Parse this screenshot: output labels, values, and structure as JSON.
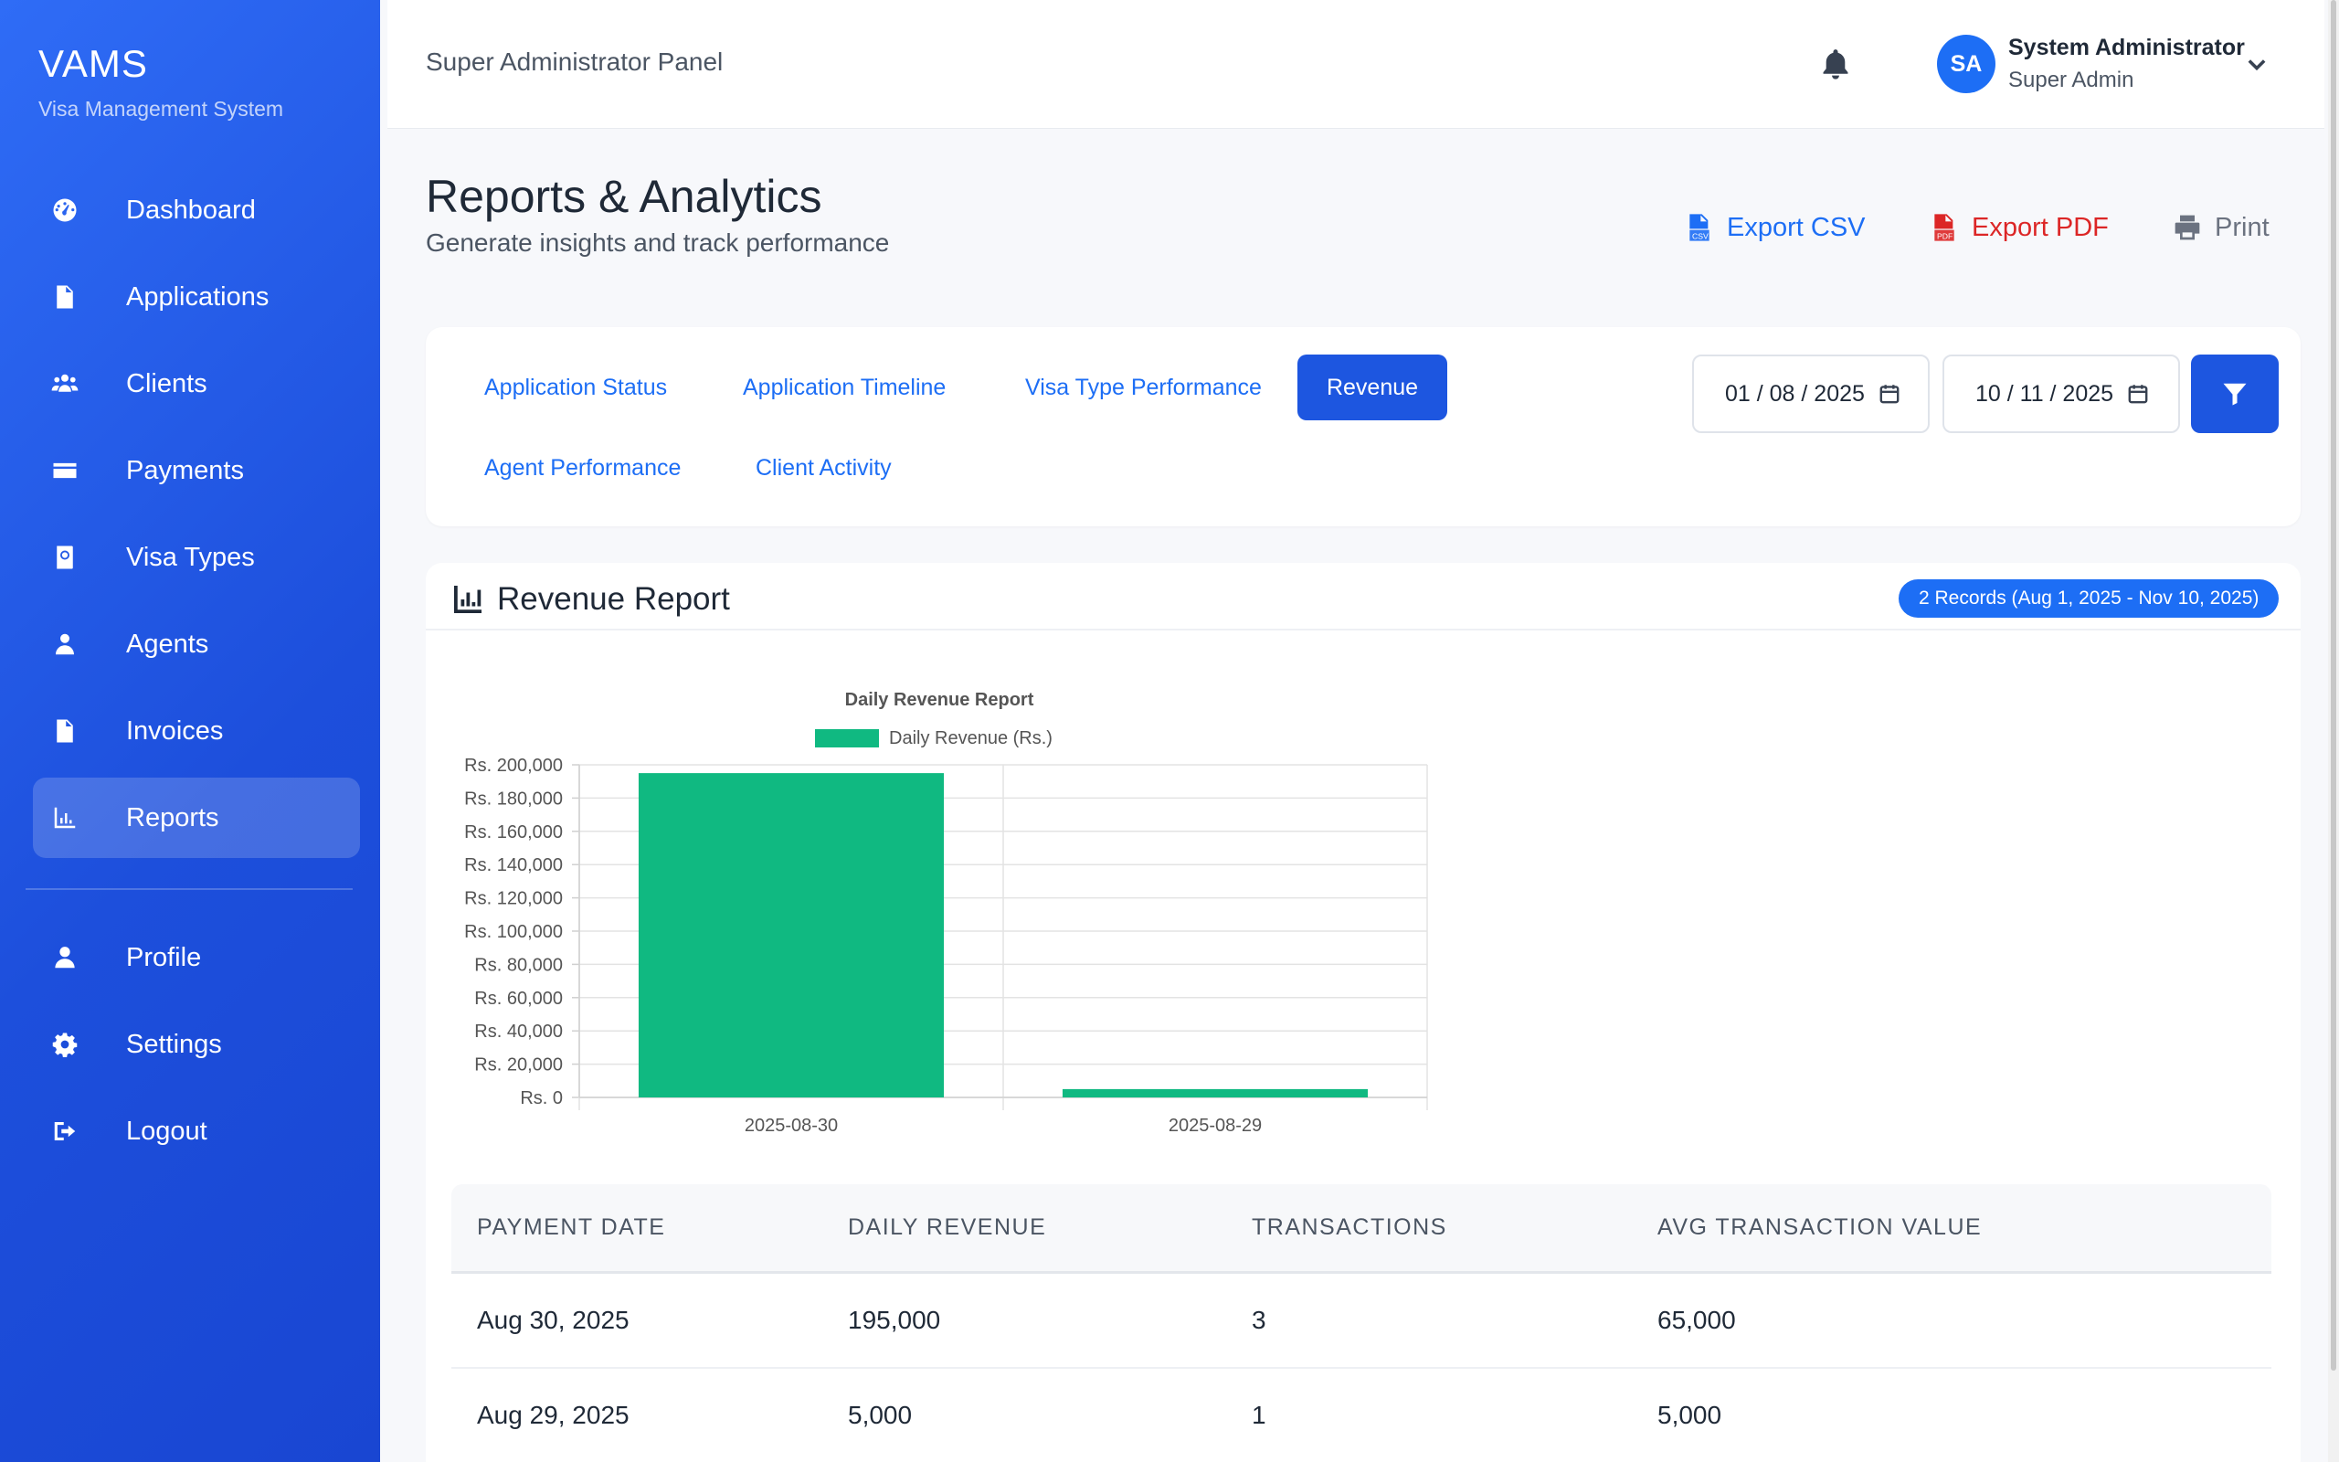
{
  "brand": {
    "title": "VAMS",
    "subtitle": "Visa Management System"
  },
  "sidebar": {
    "items": [
      {
        "label": "Dashboard",
        "icon": "dashboard-icon"
      },
      {
        "label": "Applications",
        "icon": "file-icon"
      },
      {
        "label": "Clients",
        "icon": "users-icon"
      },
      {
        "label": "Payments",
        "icon": "credit-card-icon"
      },
      {
        "label": "Visa Types",
        "icon": "passport-icon"
      },
      {
        "label": "Agents",
        "icon": "agent-icon"
      },
      {
        "label": "Invoices",
        "icon": "invoice-icon"
      },
      {
        "label": "Reports",
        "icon": "chart-icon",
        "active": true
      }
    ],
    "secondary": [
      {
        "label": "Profile",
        "icon": "user-icon"
      },
      {
        "label": "Settings",
        "icon": "gear-icon"
      },
      {
        "label": "Logout",
        "icon": "logout-icon"
      }
    ]
  },
  "topbar": {
    "panel_title": "Super Administrator Panel",
    "avatar_initials": "SA",
    "user_name": "System Administrator",
    "user_role": "Super Admin"
  },
  "header": {
    "title": "Reports & Analytics",
    "subtitle": "Generate insights and track performance",
    "export_csv": "Export CSV",
    "export_pdf": "Export PDF",
    "print": "Print"
  },
  "filters": {
    "tabs": [
      "Application Status",
      "Application Timeline",
      "Visa Type Performance",
      "Revenue",
      "Agent Performance",
      "Client Activity"
    ],
    "active_tab": "Revenue",
    "date_from": "01 / 08 / 2025",
    "date_to": "10 / 11 / 2025"
  },
  "report": {
    "title": "Revenue Report",
    "records_badge": "2 Records (Aug 1, 2025 - Nov 10, 2025)"
  },
  "chart_data": {
    "type": "bar",
    "title": "Daily Revenue Report",
    "categories": [
      "2025-08-30",
      "2025-08-29"
    ],
    "series": [
      {
        "name": "Daily Revenue (Rs.)",
        "values": [
          195000,
          5000
        ],
        "color": "#10b981"
      }
    ],
    "ylim": [
      0,
      200000
    ],
    "yticks": [
      "Rs. 0",
      "Rs. 20,000",
      "Rs. 40,000",
      "Rs. 60,000",
      "Rs. 80,000",
      "Rs. 100,000",
      "Rs. 120,000",
      "Rs. 140,000",
      "Rs. 160,000",
      "Rs. 180,000",
      "Rs. 200,000"
    ],
    "legend": "top",
    "grid": true
  },
  "table": {
    "columns": [
      "PAYMENT DATE",
      "DAILY REVENUE",
      "TRANSACTIONS",
      "AVG TRANSACTION VALUE"
    ],
    "rows": [
      [
        "Aug 30, 2025",
        "195,000",
        "3",
        "65,000"
      ],
      [
        "Aug 29, 2025",
        "5,000",
        "1",
        "5,000"
      ]
    ]
  },
  "colors": {
    "primary": "#1d6ef5",
    "sidebar": "#1d4fdc",
    "pdf": "#dc2626",
    "bar": "#10b981"
  }
}
